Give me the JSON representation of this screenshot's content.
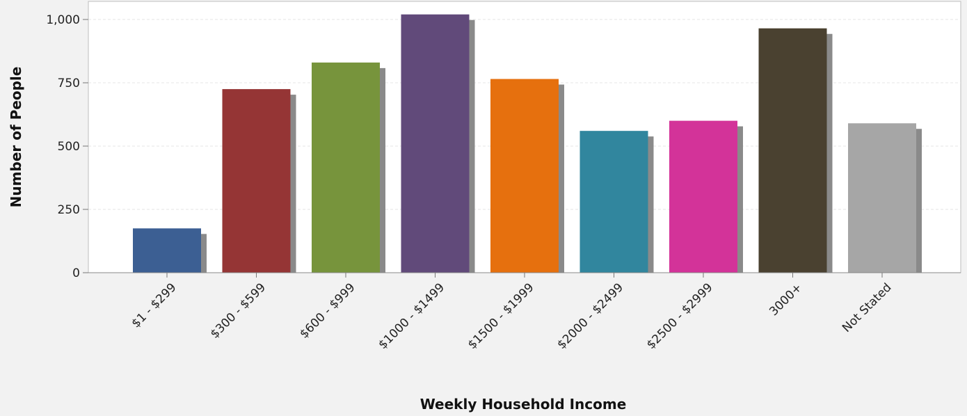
{
  "chart_data": {
    "type": "bar",
    "title": "",
    "xlabel": "Weekly Household Income",
    "ylabel": "Number of People",
    "categories": [
      "$1 - $299",
      "$300 - $599",
      "$600 - $999",
      "$1000 - $1499",
      "$1500 - $1999",
      "$2000 - $2499",
      "$2500 - $2999",
      "3000+",
      "Not Stated"
    ],
    "values": [
      175,
      725,
      830,
      1020,
      765,
      560,
      600,
      965,
      590
    ],
    "colors": [
      "#3c5f93",
      "#953535",
      "#77943c",
      "#614a7a",
      "#e6700e",
      "#31869e",
      "#d33399",
      "#4a4130",
      "#a6a6a6"
    ],
    "ylim": [
      0,
      1000
    ],
    "yticks": [
      0,
      250,
      500,
      750,
      1000
    ],
    "ytick_labels": [
      "0",
      "250",
      "500",
      "750",
      "1,000"
    ],
    "grid": true,
    "legend": "none"
  }
}
